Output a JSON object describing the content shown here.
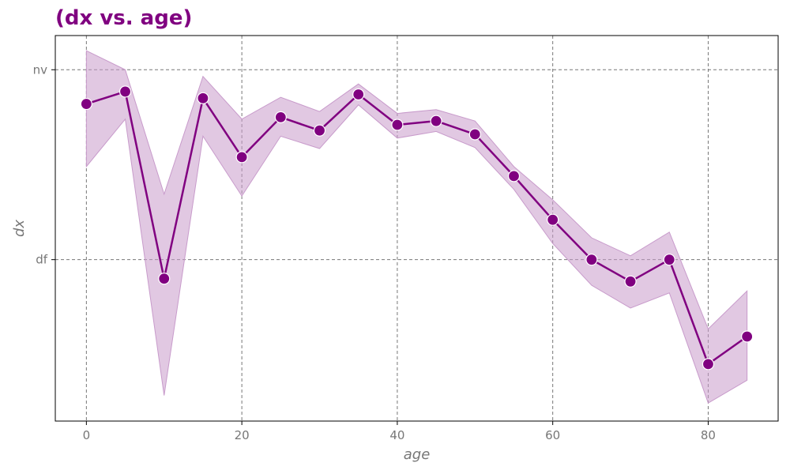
{
  "chart_data": {
    "type": "line",
    "title": "(dx vs. age)",
    "xlabel": "age",
    "ylabel": "dx",
    "x_ticks": [
      0,
      20,
      40,
      60,
      80
    ],
    "y_tick_labels": [
      "df",
      "nv"
    ],
    "xlim": [
      -4,
      89
    ],
    "ylim": [
      -0.85,
      1.18
    ],
    "grid": true,
    "line_color": "#800080",
    "band_color": "#c89bcb",
    "series": [
      {
        "x": [
          0,
          5,
          10,
          15,
          20,
          25,
          30,
          35,
          40,
          45,
          50,
          55,
          60,
          65,
          70,
          75,
          80,
          85
        ],
        "y": [
          0.82,
          0.885,
          -0.1,
          0.85,
          0.54,
          0.75,
          0.68,
          0.87,
          0.71,
          0.73,
          0.66,
          0.44,
          0.21,
          0.0,
          -0.115,
          0.0,
          -0.55,
          -0.405
        ],
        "ci_low": [
          0.49,
          0.74,
          -0.715,
          0.65,
          0.335,
          0.65,
          0.585,
          0.815,
          0.64,
          0.675,
          0.59,
          0.37,
          0.085,
          -0.135,
          -0.255,
          -0.175,
          -0.755,
          -0.635
        ],
        "ci_high": [
          1.1,
          1.0,
          0.345,
          0.965,
          0.74,
          0.855,
          0.78,
          0.925,
          0.77,
          0.79,
          0.73,
          0.49,
          0.315,
          0.115,
          0.02,
          0.145,
          -0.365,
          -0.165
        ]
      }
    ]
  }
}
